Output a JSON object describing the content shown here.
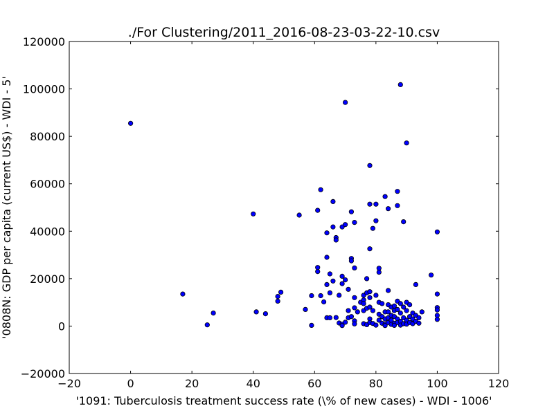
{
  "chart_data": {
    "type": "scatter",
    "title": "./For Clustering/2011_2016-08-23-03-22-10.csv",
    "xlabel": "'1091: Tuberculosis treatment success rate  (\\% of new cases) - WDI - 1006'",
    "ylabel": "'0808N: GDP per capita  (current US$) - WDI - 5'",
    "xlim": [
      -20,
      120
    ],
    "ylim": [
      -20000,
      120000
    ],
    "x_ticks": [
      -20,
      0,
      20,
      40,
      60,
      80,
      100,
      120
    ],
    "y_ticks": [
      -20000,
      0,
      20000,
      40000,
      60000,
      80000,
      100000,
      120000
    ],
    "x_tick_labels": [
      "−20",
      "0",
      "20",
      "40",
      "60",
      "80",
      "100",
      "120"
    ],
    "y_tick_labels": [
      "−20000",
      "0",
      "20000",
      "40000",
      "60000",
      "80000",
      "100000",
      "120000"
    ],
    "grid": false,
    "marker_color": "#0000ff",
    "points": [
      [
        0,
        85500
      ],
      [
        17,
        13500
      ],
      [
        25,
        500
      ],
      [
        27,
        5500
      ],
      [
        40,
        47300
      ],
      [
        41,
        6000
      ],
      [
        44,
        5200
      ],
      [
        48,
        10500
      ],
      [
        48,
        12500
      ],
      [
        49,
        14300
      ],
      [
        55,
        46800
      ],
      [
        57,
        7000
      ],
      [
        59,
        300
      ],
      [
        59,
        12800
      ],
      [
        61,
        23000
      ],
      [
        61,
        24700
      ],
      [
        61,
        48800
      ],
      [
        62,
        57500
      ],
      [
        62,
        12800
      ],
      [
        63,
        10200
      ],
      [
        64,
        39300
      ],
      [
        64,
        29000
      ],
      [
        64,
        17500
      ],
      [
        64,
        3500
      ],
      [
        65,
        22000
      ],
      [
        65,
        3500
      ],
      [
        65,
        14000
      ],
      [
        66,
        52500
      ],
      [
        66,
        41800
      ],
      [
        66,
        19000
      ],
      [
        67,
        37300
      ],
      [
        67,
        36300
      ],
      [
        67,
        3600
      ],
      [
        68,
        1300
      ],
      [
        68,
        13000
      ],
      [
        69,
        41800
      ],
      [
        69,
        21000
      ],
      [
        69,
        17900
      ],
      [
        69,
        800
      ],
      [
        69,
        200
      ],
      [
        70,
        94300
      ],
      [
        70,
        42800
      ],
      [
        70,
        19500
      ],
      [
        70,
        1600
      ],
      [
        71,
        15500
      ],
      [
        71,
        6500
      ],
      [
        71,
        3500
      ],
      [
        72,
        48200
      ],
      [
        72,
        28500
      ],
      [
        72,
        27500
      ],
      [
        72,
        4000
      ],
      [
        73,
        43700
      ],
      [
        73,
        24500
      ],
      [
        73,
        12000
      ],
      [
        73,
        7700
      ],
      [
        73,
        2200
      ],
      [
        73,
        900
      ],
      [
        74,
        6000
      ],
      [
        75,
        10000
      ],
      [
        76,
        13000
      ],
      [
        76,
        11000
      ],
      [
        76,
        9500
      ],
      [
        76,
        6500
      ],
      [
        76,
        1000
      ],
      [
        77,
        20000
      ],
      [
        77,
        14000
      ],
      [
        77,
        7500
      ],
      [
        77,
        600
      ],
      [
        78,
        67700
      ],
      [
        78,
        51400
      ],
      [
        78,
        32600
      ],
      [
        78,
        14500
      ],
      [
        78,
        12000
      ],
      [
        78,
        8000
      ],
      [
        78,
        3000
      ],
      [
        78,
        1500
      ],
      [
        79,
        41200
      ],
      [
        79,
        6500
      ],
      [
        79,
        1100
      ],
      [
        80,
        51400
      ],
      [
        80,
        44400
      ],
      [
        80,
        13000
      ],
      [
        80,
        400
      ],
      [
        81,
        24400
      ],
      [
        81,
        22700
      ],
      [
        81,
        10000
      ],
      [
        81,
        5000
      ],
      [
        81,
        2500
      ],
      [
        82,
        9500
      ],
      [
        82,
        4000
      ],
      [
        82,
        1200
      ],
      [
        83,
        54600
      ],
      [
        83,
        6000
      ],
      [
        83,
        3000
      ],
      [
        83,
        800
      ],
      [
        83,
        200
      ],
      [
        84,
        49500
      ],
      [
        84,
        15000
      ],
      [
        84,
        9000
      ],
      [
        84,
        6000
      ],
      [
        84,
        3500
      ],
      [
        84,
        1500
      ],
      [
        85,
        8000
      ],
      [
        85,
        4500
      ],
      [
        85,
        2500
      ],
      [
        85,
        700
      ],
      [
        86,
        8500
      ],
      [
        86,
        6500
      ],
      [
        86,
        4000
      ],
      [
        86,
        1200
      ],
      [
        86,
        300
      ],
      [
        87,
        56800
      ],
      [
        87,
        50800
      ],
      [
        87,
        10500
      ],
      [
        87,
        7000
      ],
      [
        87,
        3000
      ],
      [
        87,
        1500
      ],
      [
        88,
        101800
      ],
      [
        88,
        9500
      ],
      [
        88,
        5500
      ],
      [
        88,
        2000
      ],
      [
        88,
        400
      ],
      [
        89,
        44000
      ],
      [
        89,
        8000
      ],
      [
        89,
        3500
      ],
      [
        89,
        1000
      ],
      [
        90,
        77200
      ],
      [
        90,
        10000
      ],
      [
        90,
        6500
      ],
      [
        90,
        2500
      ],
      [
        90,
        800
      ],
      [
        91,
        9000
      ],
      [
        91,
        4000
      ],
      [
        91,
        1500
      ],
      [
        92,
        5500
      ],
      [
        92,
        3000
      ],
      [
        92,
        1000
      ],
      [
        93,
        17500
      ],
      [
        93,
        4500
      ],
      [
        93,
        2000
      ],
      [
        94,
        3500
      ],
      [
        94,
        1200
      ],
      [
        95,
        6000
      ],
      [
        98,
        21500
      ],
      [
        100,
        39700
      ],
      [
        100,
        13500
      ],
      [
        100,
        7800
      ],
      [
        100,
        6800
      ],
      [
        100,
        4500
      ],
      [
        100,
        2800
      ]
    ]
  }
}
